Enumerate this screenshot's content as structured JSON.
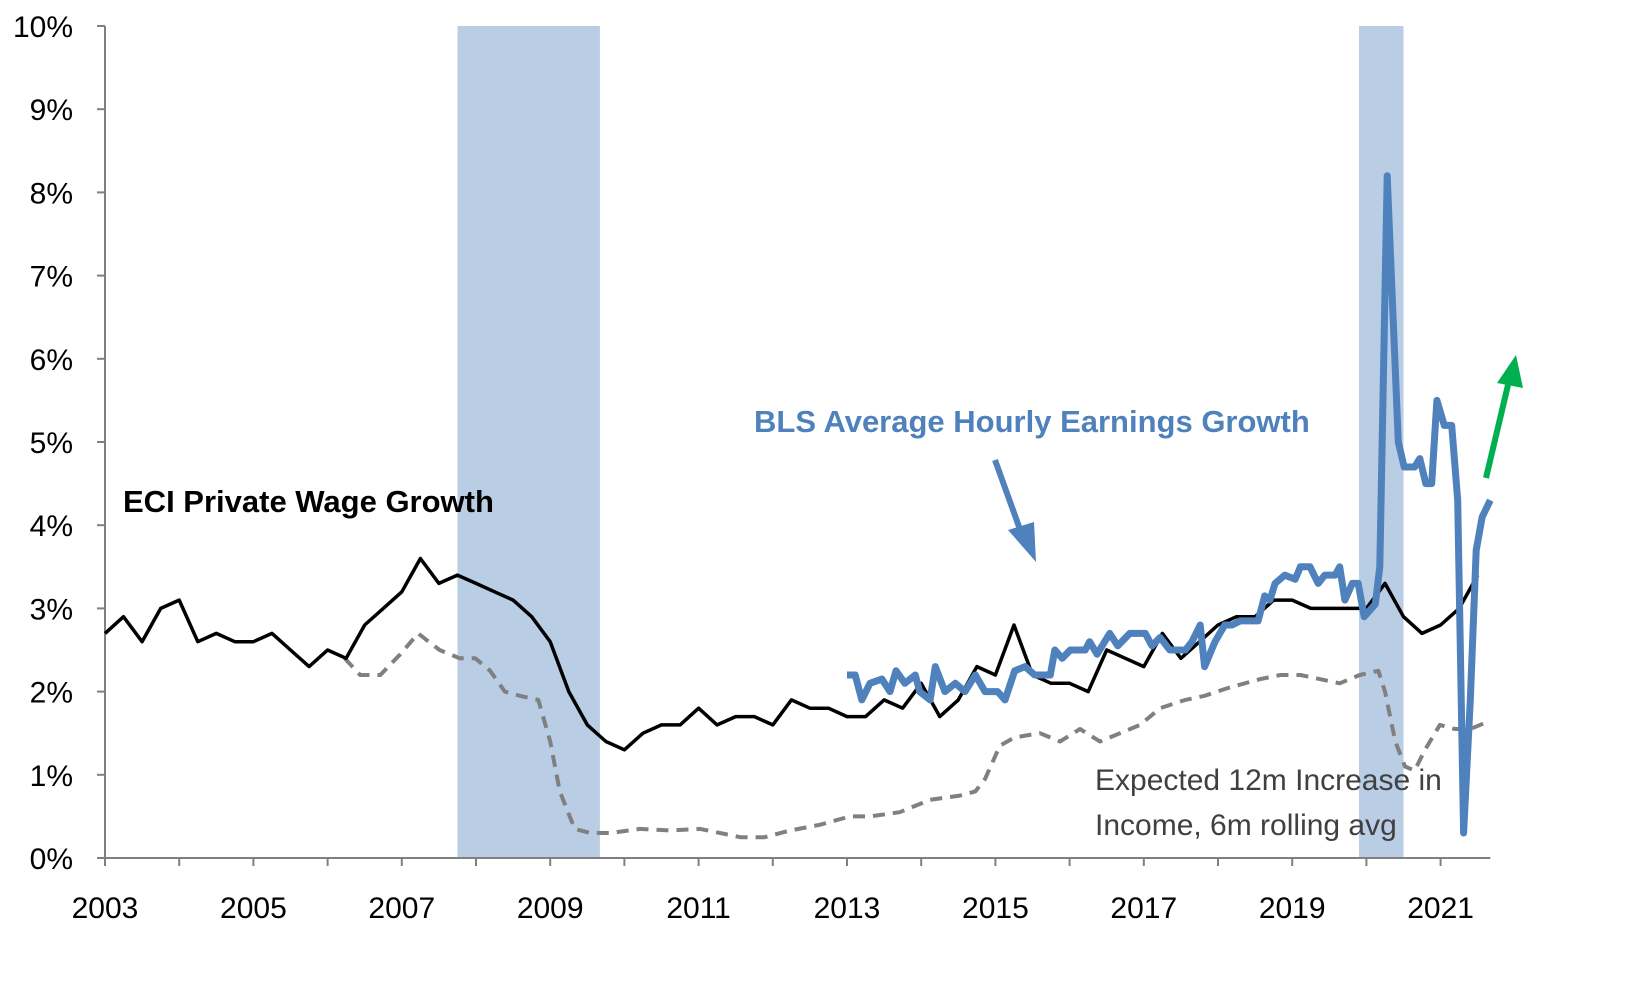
{
  "chart_data": {
    "type": "line",
    "title": "",
    "xlabel": "",
    "ylabel": "",
    "xlim": [
      2003,
      2021.67
    ],
    "ylim": [
      0,
      10
    ],
    "x_ticks": [
      "2003",
      "2005",
      "2007",
      "2009",
      "2011",
      "2013",
      "2015",
      "2017",
      "2019",
      "2021"
    ],
    "x_tick_values": [
      2003,
      2005,
      2007,
      2009,
      2011,
      2013,
      2015,
      2017,
      2019,
      2021
    ],
    "y_ticks": [
      "0%",
      "1%",
      "2%",
      "3%",
      "4%",
      "5%",
      "6%",
      "7%",
      "8%",
      "9%",
      "10%"
    ],
    "y_tick_values": [
      0,
      1,
      2,
      3,
      4,
      5,
      6,
      7,
      8,
      9,
      10
    ],
    "grid": false,
    "recessions": [
      [
        2007.75,
        2009.67
      ],
      [
        2019.9,
        2020.5
      ]
    ],
    "colors": {
      "eci": "#000000",
      "bls": "#4F81BD",
      "expected": "#808080",
      "recession": "#B9CDE5",
      "green_arrow": "#00B050"
    },
    "series": [
      {
        "name": "ECI Private Wage Growth",
        "start": 2003.0,
        "step": 0.25,
        "values": [
          2.7,
          2.9,
          2.6,
          3.0,
          3.1,
          2.6,
          2.7,
          2.6,
          2.6,
          2.7,
          2.5,
          2.3,
          2.5,
          2.4,
          2.8,
          3.0,
          3.2,
          3.6,
          3.3,
          3.4,
          3.3,
          3.2,
          3.1,
          2.9,
          2.6,
          2.0,
          1.6,
          1.4,
          1.3,
          1.5,
          1.6,
          1.6,
          1.8,
          1.6,
          1.7,
          1.7,
          1.6,
          1.9,
          1.8,
          1.8,
          1.7,
          1.7,
          1.9,
          1.8,
          2.1,
          1.7,
          1.9,
          2.3,
          2.2,
          2.8,
          2.2,
          2.1,
          2.1,
          2.0,
          2.5,
          2.4,
          2.3,
          2.7,
          2.4,
          2.6,
          2.8,
          2.9,
          2.9,
          3.1,
          3.1,
          3.0,
          3.0,
          3.0,
          3.0,
          3.3,
          2.9,
          2.7,
          2.8,
          3.0,
          3.4
        ]
      },
      {
        "name": "BLS Average Hourly Earnings Growth",
        "points": [
          [
            2013.0,
            2.2
          ],
          [
            2013.11,
            2.2
          ],
          [
            2013.2,
            1.9
          ],
          [
            2013.31,
            2.1
          ],
          [
            2013.47,
            2.15
          ],
          [
            2013.58,
            2.0
          ],
          [
            2013.66,
            2.25
          ],
          [
            2013.78,
            2.1
          ],
          [
            2013.92,
            2.2
          ],
          [
            2013.98,
            2.0
          ],
          [
            2014.12,
            1.9
          ],
          [
            2014.19,
            2.3
          ],
          [
            2014.32,
            2.0
          ],
          [
            2014.46,
            2.1
          ],
          [
            2014.59,
            2.0
          ],
          [
            2014.73,
            2.2
          ],
          [
            2014.86,
            2.0
          ],
          [
            2015.03,
            2.0
          ],
          [
            2015.13,
            1.9
          ],
          [
            2015.26,
            2.25
          ],
          [
            2015.4,
            2.3
          ],
          [
            2015.53,
            2.2
          ],
          [
            2015.74,
            2.2
          ],
          [
            2015.8,
            2.5
          ],
          [
            2015.9,
            2.4
          ],
          [
            2016.01,
            2.5
          ],
          [
            2016.21,
            2.5
          ],
          [
            2016.27,
            2.6
          ],
          [
            2016.37,
            2.45
          ],
          [
            2016.54,
            2.7
          ],
          [
            2016.65,
            2.55
          ],
          [
            2016.81,
            2.7
          ],
          [
            2017.02,
            2.7
          ],
          [
            2017.11,
            2.55
          ],
          [
            2017.22,
            2.65
          ],
          [
            2017.35,
            2.5
          ],
          [
            2017.56,
            2.5
          ],
          [
            2017.65,
            2.6
          ],
          [
            2017.76,
            2.8
          ],
          [
            2017.82,
            2.3
          ],
          [
            2017.96,
            2.6
          ],
          [
            2018.09,
            2.8
          ],
          [
            2018.19,
            2.8
          ],
          [
            2018.3,
            2.85
          ],
          [
            2018.54,
            2.85
          ],
          [
            2018.63,
            3.15
          ],
          [
            2018.7,
            3.1
          ],
          [
            2018.77,
            3.3
          ],
          [
            2018.9,
            3.4
          ],
          [
            2019.04,
            3.35
          ],
          [
            2019.11,
            3.5
          ],
          [
            2019.24,
            3.5
          ],
          [
            2019.35,
            3.3
          ],
          [
            2019.44,
            3.4
          ],
          [
            2019.58,
            3.4
          ],
          [
            2019.64,
            3.5
          ],
          [
            2019.71,
            3.1
          ],
          [
            2019.81,
            3.3
          ],
          [
            2019.89,
            3.3
          ],
          [
            2019.97,
            2.9
          ],
          [
            2020.12,
            3.05
          ],
          [
            2020.18,
            3.5
          ],
          [
            2020.28,
            8.2
          ],
          [
            2020.43,
            5.0
          ],
          [
            2020.51,
            4.7
          ],
          [
            2020.65,
            4.7
          ],
          [
            2020.72,
            4.8
          ],
          [
            2020.8,
            4.5
          ],
          [
            2020.88,
            4.5
          ],
          [
            2020.95,
            5.5
          ],
          [
            2021.05,
            5.2
          ],
          [
            2021.15,
            5.2
          ],
          [
            2021.23,
            4.3
          ],
          [
            2021.31,
            0.3
          ],
          [
            2021.4,
            1.9
          ],
          [
            2021.48,
            3.7
          ],
          [
            2021.56,
            4.1
          ],
          [
            2021.67,
            4.3
          ]
        ]
      },
      {
        "name": "Expected 12m Increase in Income, 6m rolling avg",
        "points": [
          [
            2006.23,
            2.4
          ],
          [
            2006.44,
            2.2
          ],
          [
            2006.71,
            2.2
          ],
          [
            2006.98,
            2.45
          ],
          [
            2007.22,
            2.7
          ],
          [
            2007.51,
            2.5
          ],
          [
            2007.78,
            2.4
          ],
          [
            2007.99,
            2.4
          ],
          [
            2008.19,
            2.25
          ],
          [
            2008.39,
            2.0
          ],
          [
            2008.59,
            1.95
          ],
          [
            2008.84,
            1.9
          ],
          [
            2009.0,
            1.4
          ],
          [
            2009.13,
            0.8
          ],
          [
            2009.33,
            0.35
          ],
          [
            2009.54,
            0.3
          ],
          [
            2009.81,
            0.3
          ],
          [
            2010.21,
            0.35
          ],
          [
            2010.61,
            0.33
          ],
          [
            2011.02,
            0.35
          ],
          [
            2011.56,
            0.25
          ],
          [
            2011.89,
            0.25
          ],
          [
            2012.23,
            0.33
          ],
          [
            2012.64,
            0.4
          ],
          [
            2013.04,
            0.5
          ],
          [
            2013.31,
            0.5
          ],
          [
            2013.71,
            0.55
          ],
          [
            2014.12,
            0.7
          ],
          [
            2014.52,
            0.75
          ],
          [
            2014.73,
            0.8
          ],
          [
            2014.86,
            0.95
          ],
          [
            2015.06,
            1.35
          ],
          [
            2015.26,
            1.45
          ],
          [
            2015.6,
            1.5
          ],
          [
            2015.87,
            1.4
          ],
          [
            2016.14,
            1.55
          ],
          [
            2016.41,
            1.4
          ],
          [
            2016.68,
            1.5
          ],
          [
            2016.95,
            1.6
          ],
          [
            2017.22,
            1.8
          ],
          [
            2017.56,
            1.9
          ],
          [
            2017.82,
            1.95
          ],
          [
            2018.16,
            2.05
          ],
          [
            2018.57,
            2.15
          ],
          [
            2018.84,
            2.2
          ],
          [
            2019.11,
            2.2
          ],
          [
            2019.37,
            2.15
          ],
          [
            2019.64,
            2.1
          ],
          [
            2019.91,
            2.2
          ],
          [
            2020.16,
            2.25
          ],
          [
            2020.25,
            2.0
          ],
          [
            2020.39,
            1.4
          ],
          [
            2020.52,
            1.1
          ],
          [
            2020.65,
            1.05
          ],
          [
            2020.79,
            1.3
          ],
          [
            2020.99,
            1.6
          ],
          [
            2021.19,
            1.55
          ],
          [
            2021.4,
            1.55
          ],
          [
            2021.67,
            1.65
          ]
        ]
      }
    ],
    "annotations": {
      "eci_label": "ECI Private Wage Growth",
      "bls_label": "BLS Average Hourly Earnings Growth",
      "expected_label_line1": "Expected 12m Increase in",
      "expected_label_line2": "Income, 6m rolling avg"
    }
  }
}
